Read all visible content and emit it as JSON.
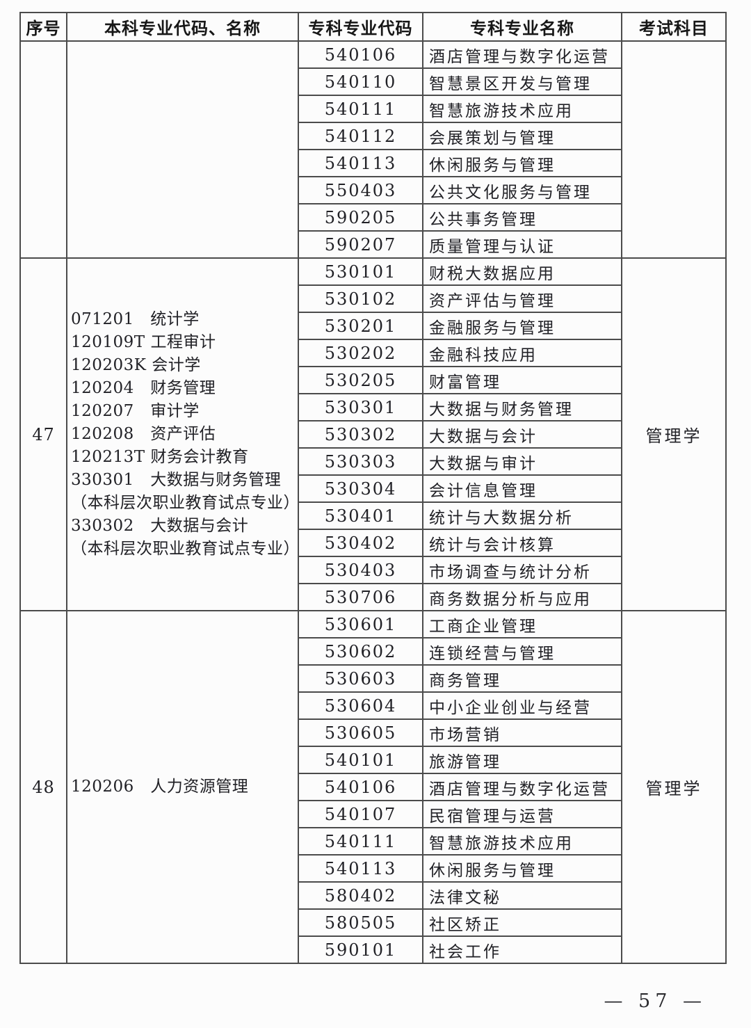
{
  "header": {
    "columns": [
      "序号",
      "本科专业代码、名称",
      "专科专业代码",
      "专科专业名称",
      "考试科目"
    ]
  },
  "sections": [
    {
      "serial": "",
      "undergrad_lines": [],
      "exam_subject": "",
      "college_majors": [
        {
          "code": "540106",
          "name": "酒店管理与数字化运营"
        },
        {
          "code": "540110",
          "name": "智慧景区开发与管理"
        },
        {
          "code": "540111",
          "name": "智慧旅游技术应用"
        },
        {
          "code": "540112",
          "name": "会展策划与管理"
        },
        {
          "code": "540113",
          "name": "休闲服务与管理"
        },
        {
          "code": "550403",
          "name": "公共文化服务与管理"
        },
        {
          "code": "590205",
          "name": "公共事务管理"
        },
        {
          "code": "590207",
          "name": "质量管理与认证"
        }
      ]
    },
    {
      "serial": "47",
      "undergrad_lines": [
        "071201　统计学",
        "120109T 工程审计",
        "120203K 会计学",
        "120204　财务管理",
        "120207　审计学",
        "120208　资产评估",
        "120213T 财务会计教育",
        "330301　大数据与财务管理",
        "（本科层次职业教育试点专业）",
        "330302　大数据与会计",
        "（本科层次职业教育试点专业）"
      ],
      "exam_subject": "管理学",
      "college_majors": [
        {
          "code": "530101",
          "name": "财税大数据应用"
        },
        {
          "code": "530102",
          "name": "资产评估与管理"
        },
        {
          "code": "530201",
          "name": "金融服务与管理"
        },
        {
          "code": "530202",
          "name": "金融科技应用"
        },
        {
          "code": "530205",
          "name": "财富管理"
        },
        {
          "code": "530301",
          "name": "大数据与财务管理"
        },
        {
          "code": "530302",
          "name": "大数据与会计"
        },
        {
          "code": "530303",
          "name": "大数据与审计"
        },
        {
          "code": "530304",
          "name": "会计信息管理"
        },
        {
          "code": "530401",
          "name": "统计与大数据分析"
        },
        {
          "code": "530402",
          "name": "统计与会计核算"
        },
        {
          "code": "530403",
          "name": "市场调查与统计分析"
        },
        {
          "code": "530706",
          "name": "商务数据分析与应用"
        }
      ]
    },
    {
      "serial": "48",
      "undergrad_lines": [
        "120206　人力资源管理"
      ],
      "exam_subject": "管理学",
      "college_majors": [
        {
          "code": "530601",
          "name": "工商企业管理"
        },
        {
          "code": "530602",
          "name": "连锁经营与管理"
        },
        {
          "code": "530603",
          "name": "商务管理"
        },
        {
          "code": "530604",
          "name": "中小企业创业与经营"
        },
        {
          "code": "530605",
          "name": "市场营销"
        },
        {
          "code": "540101",
          "name": "旅游管理"
        },
        {
          "code": "540106",
          "name": "酒店管理与数字化运营"
        },
        {
          "code": "540107",
          "name": "民宿管理与运营"
        },
        {
          "code": "540111",
          "name": "智慧旅游技术应用"
        },
        {
          "code": "540113",
          "name": "休闲服务与管理"
        },
        {
          "code": "580402",
          "name": "法律文秘"
        },
        {
          "code": "580505",
          "name": "社区矫正"
        },
        {
          "code": "590101",
          "name": "社会工作"
        }
      ]
    }
  ],
  "page_number": "— 57 —"
}
